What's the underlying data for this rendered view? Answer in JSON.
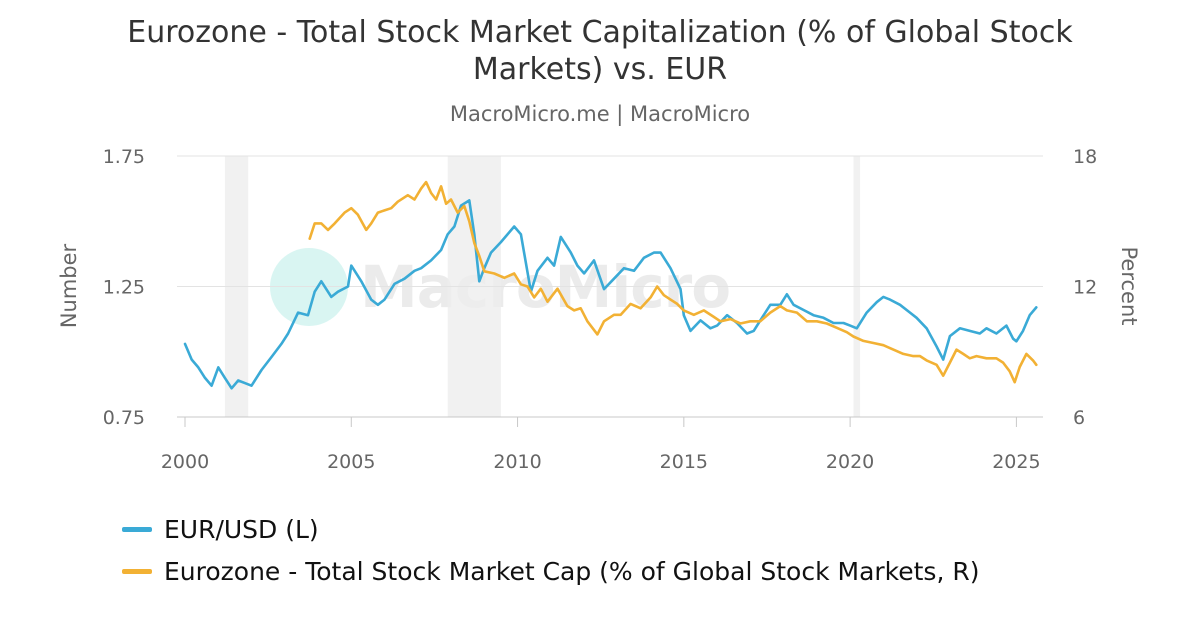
{
  "chart_data": {
    "type": "line",
    "title": "Eurozone - Total Stock Market Capitalization (% of Global Stock Markets) vs. EUR",
    "title_lines": [
      "Eurozone - Total Stock Market Capitalization (% of Global Stock",
      "Markets) vs. EUR"
    ],
    "subtitle": "MacroMicro.me | MacroMicro",
    "watermark": "MacroMicro",
    "xlabel": "",
    "ylabel_left": "Number",
    "ylabel_right": "Percent",
    "xlim": [
      2000,
      2025.8
    ],
    "ylim_left": [
      0.75,
      1.75
    ],
    "ylim_right": [
      6,
      18
    ],
    "x_ticks": [
      "2000",
      "2005",
      "2010",
      "2015",
      "2020",
      "2025"
    ],
    "x_tick_values": [
      2000,
      2005,
      2010,
      2015,
      2020,
      2025
    ],
    "y_left_ticks": [
      "0.75",
      "1.25",
      "1.75"
    ],
    "y_left_tick_values": [
      0.75,
      1.25,
      1.75
    ],
    "y_right_ticks": [
      "6",
      "12",
      "18"
    ],
    "y_right_tick_values": [
      6,
      12,
      18
    ],
    "grid": true,
    "recession_bands": [
      [
        2001.2,
        2001.9
      ],
      [
        2007.9,
        2009.5
      ],
      [
        2020.1,
        2020.3
      ]
    ],
    "legend_position": "bottom-left",
    "series": [
      {
        "name": "EUR/USD (L)",
        "axis": "left",
        "color": "#3aaad6",
        "x": [
          2000.0,
          2000.2,
          2000.4,
          2000.6,
          2000.8,
          2001.0,
          2001.2,
          2001.4,
          2001.6,
          2001.8,
          2002.0,
          2002.3,
          2002.6,
          2002.9,
          2003.1,
          2003.4,
          2003.7,
          2003.9,
          2004.1,
          2004.4,
          2004.6,
          2004.9,
          2005.0,
          2005.3,
          2005.6,
          2005.8,
          2006.0,
          2006.3,
          2006.6,
          2006.9,
          2007.1,
          2007.4,
          2007.7,
          2007.9,
          2008.1,
          2008.3,
          2008.55,
          2008.7,
          2008.85,
          2009.0,
          2009.2,
          2009.5,
          2009.9,
          2010.1,
          2010.4,
          2010.6,
          2010.9,
          2011.1,
          2011.3,
          2011.6,
          2011.8,
          2012.0,
          2012.3,
          2012.6,
          2012.9,
          2013.2,
          2013.5,
          2013.8,
          2014.1,
          2014.3,
          2014.6,
          2014.9,
          2015.0,
          2015.2,
          2015.5,
          2015.8,
          2016.0,
          2016.3,
          2016.6,
          2016.9,
          2017.1,
          2017.3,
          2017.6,
          2017.9,
          2018.1,
          2018.3,
          2018.6,
          2018.9,
          2019.2,
          2019.5,
          2019.8,
          2020.0,
          2020.2,
          2020.5,
          2020.8,
          2021.0,
          2021.2,
          2021.5,
          2021.8,
          2022.0,
          2022.3,
          2022.6,
          2022.8,
          2023.0,
          2023.3,
          2023.6,
          2023.9,
          2024.1,
          2024.4,
          2024.7,
          2024.9,
          2025.0,
          2025.2,
          2025.4,
          2025.6
        ],
        "values": [
          1.03,
          0.97,
          0.94,
          0.9,
          0.87,
          0.94,
          0.9,
          0.86,
          0.89,
          0.88,
          0.87,
          0.93,
          0.98,
          1.03,
          1.07,
          1.15,
          1.14,
          1.23,
          1.27,
          1.21,
          1.23,
          1.25,
          1.33,
          1.27,
          1.2,
          1.18,
          1.2,
          1.26,
          1.28,
          1.31,
          1.32,
          1.35,
          1.39,
          1.45,
          1.48,
          1.56,
          1.58,
          1.45,
          1.27,
          1.32,
          1.38,
          1.42,
          1.48,
          1.45,
          1.23,
          1.31,
          1.36,
          1.33,
          1.44,
          1.38,
          1.33,
          1.3,
          1.35,
          1.24,
          1.28,
          1.32,
          1.31,
          1.36,
          1.38,
          1.38,
          1.32,
          1.24,
          1.14,
          1.08,
          1.12,
          1.09,
          1.1,
          1.14,
          1.11,
          1.07,
          1.08,
          1.12,
          1.18,
          1.18,
          1.22,
          1.18,
          1.16,
          1.14,
          1.13,
          1.11,
          1.11,
          1.1,
          1.09,
          1.15,
          1.19,
          1.21,
          1.2,
          1.18,
          1.15,
          1.13,
          1.09,
          1.02,
          0.97,
          1.06,
          1.09,
          1.08,
          1.07,
          1.09,
          1.07,
          1.1,
          1.05,
          1.04,
          1.08,
          1.14,
          1.17
        ]
      },
      {
        "name": "Eurozone - Total Stock Market Cap (% of Global Stock Markets, R)",
        "axis": "right",
        "color": "#f2b134",
        "x": [
          2003.75,
          2003.9,
          2004.1,
          2004.3,
          2004.5,
          2004.8,
          2005.0,
          2005.2,
          2005.45,
          2005.6,
          2005.8,
          2006.0,
          2006.2,
          2006.4,
          2006.7,
          2006.9,
          2007.1,
          2007.25,
          2007.4,
          2007.55,
          2007.7,
          2007.85,
          2008.0,
          2008.2,
          2008.4,
          2008.55,
          2008.7,
          2008.85,
          2009.0,
          2009.3,
          2009.6,
          2009.9,
          2010.1,
          2010.3,
          2010.5,
          2010.7,
          2010.9,
          2011.2,
          2011.5,
          2011.7,
          2011.9,
          2012.1,
          2012.4,
          2012.6,
          2012.9,
          2013.1,
          2013.4,
          2013.7,
          2014.0,
          2014.2,
          2014.4,
          2014.6,
          2014.8,
          2015.0,
          2015.3,
          2015.6,
          2015.9,
          2016.1,
          2016.4,
          2016.7,
          2017.0,
          2017.3,
          2017.6,
          2017.9,
          2018.1,
          2018.4,
          2018.7,
          2019.0,
          2019.3,
          2019.6,
          2019.9,
          2020.1,
          2020.4,
          2020.7,
          2021.0,
          2021.3,
          2021.6,
          2021.9,
          2022.1,
          2022.3,
          2022.6,
          2022.8,
          2023.0,
          2023.2,
          2023.4,
          2023.6,
          2023.8,
          2024.1,
          2024.4,
          2024.6,
          2024.8,
          2024.95,
          2025.1,
          2025.3,
          2025.5,
          2025.6
        ],
        "values": [
          14.2,
          14.9,
          14.9,
          14.6,
          14.9,
          15.4,
          15.6,
          15.3,
          14.6,
          14.9,
          15.4,
          15.5,
          15.6,
          15.9,
          16.2,
          16.0,
          16.5,
          16.8,
          16.3,
          16.0,
          16.6,
          15.8,
          16.0,
          15.4,
          15.7,
          15.0,
          14.0,
          13.4,
          12.7,
          12.6,
          12.4,
          12.6,
          12.1,
          12.0,
          11.5,
          11.9,
          11.3,
          11.9,
          11.1,
          10.9,
          11.0,
          10.4,
          9.8,
          10.4,
          10.7,
          10.7,
          11.2,
          11.0,
          11.5,
          12.0,
          11.6,
          11.4,
          11.2,
          10.9,
          10.7,
          10.9,
          10.6,
          10.4,
          10.5,
          10.3,
          10.4,
          10.4,
          10.8,
          11.1,
          10.9,
          10.8,
          10.4,
          10.4,
          10.3,
          10.1,
          9.9,
          9.7,
          9.5,
          9.4,
          9.3,
          9.1,
          8.9,
          8.8,
          8.8,
          8.6,
          8.4,
          7.9,
          8.5,
          9.1,
          8.9,
          8.7,
          8.8,
          8.7,
          8.7,
          8.5,
          8.1,
          7.6,
          8.3,
          8.9,
          8.6,
          8.4
        ]
      }
    ]
  }
}
